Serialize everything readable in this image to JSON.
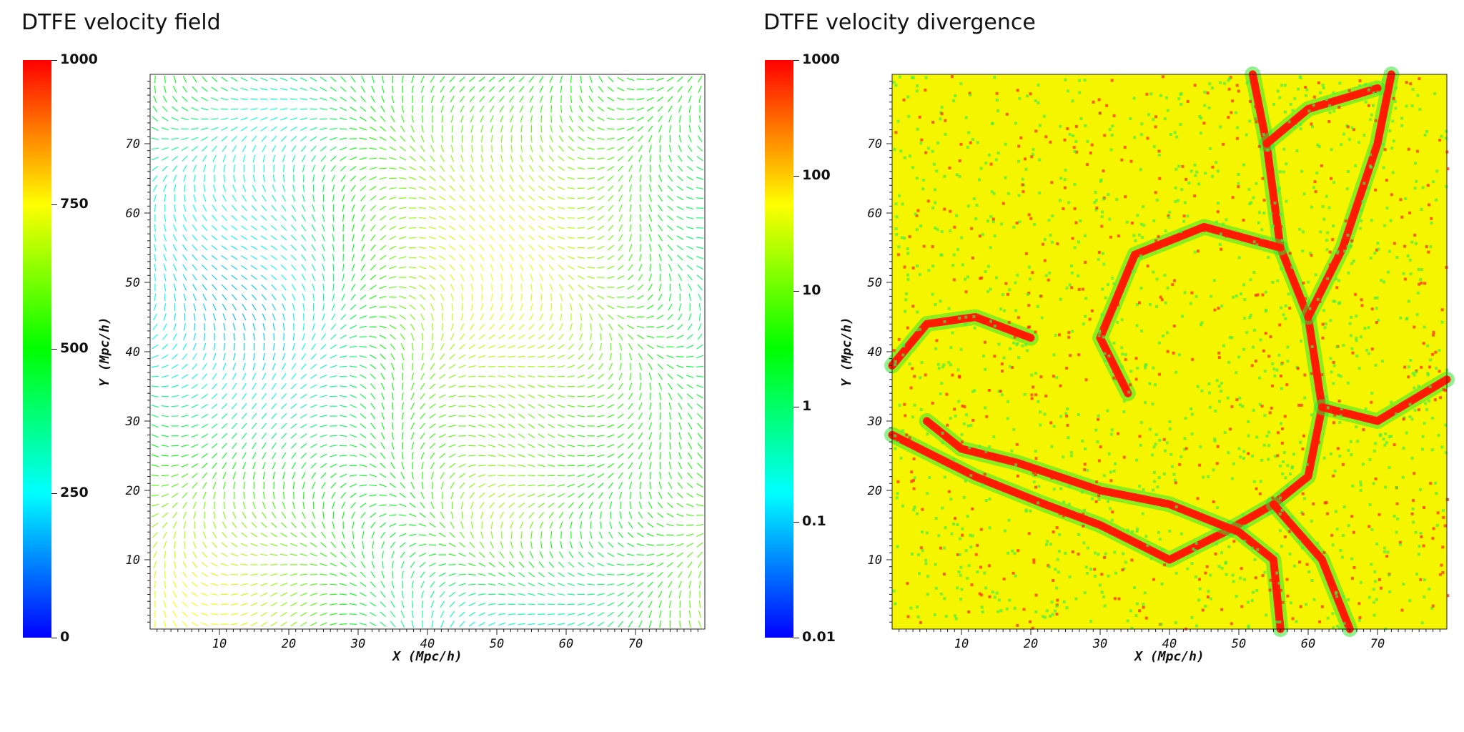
{
  "panels": [
    {
      "title": "DTFE velocity field",
      "colorbar_ticks": [
        "1000",
        "750",
        "500",
        "250",
        "0"
      ],
      "colors": [
        "#0000ff",
        "#00ffff",
        "#00ff00",
        "#ffff00",
        "#ff0000"
      ]
    },
    {
      "title": "DTFE velocity divergence",
      "colorbar_ticks": [
        "1000",
        "100",
        "10",
        "1",
        "0.1",
        "0.01"
      ],
      "colors": [
        "#0000ff",
        "#00ffff",
        "#00ff00",
        "#ffff00",
        "#ff0000"
      ]
    }
  ],
  "chart_data": [
    {
      "type": "vector-field",
      "title": "DTFE velocity field",
      "xlabel": "X (Mpc/h)",
      "ylabel": "Y (Mpc/h)",
      "xlim": [
        0,
        80
      ],
      "ylim": [
        0,
        80
      ],
      "xticks": [
        10,
        20,
        30,
        40,
        50,
        60,
        70
      ],
      "yticks": [
        10,
        20,
        30,
        40,
        50,
        60,
        70
      ],
      "colorbar": {
        "min": 0,
        "max": 1000,
        "ticks": [
          0,
          250,
          500,
          750,
          1000
        ],
        "scale": "linear"
      },
      "grid": false
    },
    {
      "type": "heatmap",
      "title": "DTFE velocity divergence",
      "xlabel": "X (Mpc/h)",
      "ylabel": "Y (Mpc/h)",
      "xlim": [
        0,
        80
      ],
      "ylim": [
        0,
        80
      ],
      "xticks": [
        10,
        20,
        30,
        40,
        50,
        60,
        70
      ],
      "yticks": [
        10,
        20,
        30,
        40,
        50,
        60,
        70
      ],
      "colorbar": {
        "min": 0.01,
        "max": 1000,
        "ticks": [
          0.01,
          0.1,
          1,
          10,
          100,
          1000
        ],
        "scale": "log"
      },
      "grid": false
    }
  ]
}
